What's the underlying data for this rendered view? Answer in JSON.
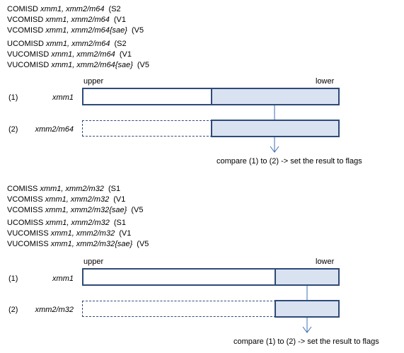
{
  "colors": {
    "border": "#2e4a78",
    "lower_fill": "#d9e2f1",
    "arrow": "#3b6fb6"
  },
  "double": {
    "group_a": [
      {
        "mnemonic": "COMISD",
        "operands": "xmm1, xmm2/m64",
        "note": "(S2"
      },
      {
        "mnemonic": "VCOMISD",
        "operands": "xmm1, xmm2/m64",
        "note": "(V1"
      },
      {
        "mnemonic": "VCOMISD",
        "operands": "xmm1, xmm2/m64{sae}",
        "note": "(V5"
      }
    ],
    "group_b": [
      {
        "mnemonic": "UCOMISD",
        "operands": "xmm1, xmm2/m64",
        "note": "(S2"
      },
      {
        "mnemonic": "VUCOMISD",
        "operands": "xmm1, xmm2/m64",
        "note": "(V1"
      },
      {
        "mnemonic": "VUCOMISD",
        "operands": "xmm1, xmm2/m64{sae}",
        "note": "(V5"
      }
    ],
    "upper_label": "upper",
    "lower_label": "lower",
    "row1": {
      "index": "(1)",
      "name": "xmm1"
    },
    "row2": {
      "index": "(2)",
      "name": "xmm2/m64"
    },
    "caption": "compare (1) to (2) -> set the result to flags"
  },
  "single": {
    "group_a": [
      {
        "mnemonic": "COMISS",
        "operands": "xmm1, xmm2/m32",
        "note": "(S1"
      },
      {
        "mnemonic": "VCOMISS",
        "operands": "xmm1, xmm2/m32",
        "note": "(V1"
      },
      {
        "mnemonic": "VCOMISS",
        "operands": "xmm1, xmm2/m32{sae}",
        "note": "(V5"
      }
    ],
    "group_b": [
      {
        "mnemonic": "UCOMISS",
        "operands": "xmm1, xmm2/m32",
        "note": "(S1"
      },
      {
        "mnemonic": "VUCOMISS",
        "operands": "xmm1, xmm2/m32",
        "note": "(V1"
      },
      {
        "mnemonic": "VUCOMISS",
        "operands": "xmm1, xmm2/m32{sae}",
        "note": "(V5"
      }
    ],
    "upper_label": "upper",
    "lower_label": "lower",
    "row1": {
      "index": "(1)",
      "name": "xmm1"
    },
    "row2": {
      "index": "(2)",
      "name": "xmm2/m32"
    },
    "caption": "compare (1) to (2) -> set the result to flags"
  }
}
